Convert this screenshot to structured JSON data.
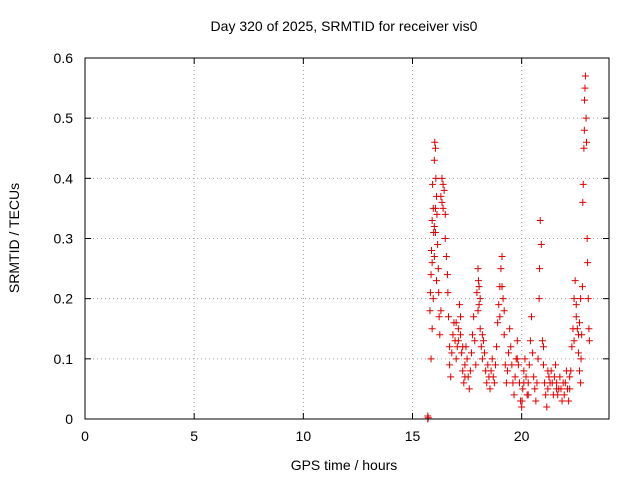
{
  "chart_data": {
    "type": "scatter",
    "title": "Day 320 of 2025, SRMTID for receiver vis0",
    "xlabel": "GPS time / hours",
    "ylabel": "SRMTID / TECUs",
    "xlim": [
      0,
      24
    ],
    "ylim": [
      0,
      0.6
    ],
    "xticks": [
      0,
      5,
      10,
      15,
      20
    ],
    "xtick_labels": [
      "0",
      "5",
      "10",
      "15",
      "20"
    ],
    "yticks": [
      0,
      0.1,
      0.2,
      0.3,
      0.4,
      0.5,
      0.6
    ],
    "ytick_labels": [
      "0",
      "0.1",
      "0.2",
      "0.3",
      "0.4",
      "0.5",
      "0.6"
    ],
    "grid": true,
    "marker": "plus",
    "color": "#e00000",
    "series": [
      {
        "name": "SRMTID",
        "points": [
          [
            15.7,
            0.0
          ],
          [
            15.7,
            0.005
          ],
          [
            15.72,
            0.002
          ],
          [
            15.8,
            0.18
          ],
          [
            15.82,
            0.21
          ],
          [
            15.85,
            0.24
          ],
          [
            15.87,
            0.28
          ],
          [
            15.9,
            0.33
          ],
          [
            15.92,
            0.39
          ],
          [
            15.95,
            0.35
          ],
          [
            15.97,
            0.31
          ],
          [
            16.0,
            0.43
          ],
          [
            16.02,
            0.46
          ],
          [
            16.05,
            0.45
          ],
          [
            16.07,
            0.4
          ],
          [
            16.1,
            0.37
          ],
          [
            16.12,
            0.34
          ],
          [
            16.15,
            0.29
          ],
          [
            16.18,
            0.25
          ],
          [
            16.2,
            0.21
          ],
          [
            16.22,
            0.17
          ],
          [
            15.85,
            0.1
          ],
          [
            15.9,
            0.15
          ],
          [
            15.95,
            0.2
          ],
          [
            16.0,
            0.27
          ],
          [
            16.05,
            0.31
          ],
          [
            16.1,
            0.23
          ],
          [
            16.25,
            0.14
          ],
          [
            16.3,
            0.18
          ],
          [
            16.35,
            0.36
          ],
          [
            16.4,
            0.39
          ],
          [
            16.45,
            0.38
          ],
          [
            16.5,
            0.34
          ],
          [
            16.5,
            0.3
          ],
          [
            16.55,
            0.27
          ],
          [
            16.6,
            0.24
          ],
          [
            16.62,
            0.21
          ],
          [
            16.65,
            0.17
          ],
          [
            16.7,
            0.12
          ],
          [
            16.7,
            0.09
          ],
          [
            16.75,
            0.07
          ],
          [
            16.8,
            0.11
          ],
          [
            16.85,
            0.14
          ],
          [
            16.9,
            0.16
          ],
          [
            16.95,
            0.13
          ],
          [
            17.0,
            0.1
          ],
          [
            17.05,
            0.12
          ],
          [
            17.1,
            0.15
          ],
          [
            17.15,
            0.19
          ],
          [
            17.2,
            0.14
          ],
          [
            17.25,
            0.11
          ],
          [
            17.3,
            0.08
          ],
          [
            17.35,
            0.06
          ],
          [
            17.4,
            0.09
          ],
          [
            17.45,
            0.12
          ],
          [
            17.5,
            0.1
          ],
          [
            17.55,
            0.07
          ],
          [
            17.6,
            0.05
          ],
          [
            17.65,
            0.08
          ],
          [
            17.7,
            0.11
          ],
          [
            17.75,
            0.14
          ],
          [
            17.8,
            0.17
          ],
          [
            17.85,
            0.13
          ],
          [
            17.9,
            0.09
          ],
          [
            17.95,
            0.21
          ],
          [
            18.0,
            0.25
          ],
          [
            18.02,
            0.23
          ],
          [
            18.05,
            0.19
          ],
          [
            18.1,
            0.15
          ],
          [
            18.15,
            0.12
          ],
          [
            18.2,
            0.1
          ],
          [
            18.25,
            0.13
          ],
          [
            18.3,
            0.11
          ],
          [
            18.35,
            0.08
          ],
          [
            18.4,
            0.06
          ],
          [
            18.45,
            0.09
          ],
          [
            18.5,
            0.07
          ],
          [
            18.55,
            0.05
          ],
          [
            18.6,
            0.08
          ],
          [
            18.65,
            0.1
          ],
          [
            18.7,
            0.07
          ],
          [
            18.75,
            0.06
          ],
          [
            18.8,
            0.09
          ],
          [
            18.85,
            0.12
          ],
          [
            18.9,
            0.16
          ],
          [
            18.95,
            0.19
          ],
          [
            19.0,
            0.22
          ],
          [
            19.05,
            0.25
          ],
          [
            19.1,
            0.27
          ],
          [
            19.15,
            0.2
          ],
          [
            19.2,
            0.14
          ],
          [
            19.25,
            0.09
          ],
          [
            19.3,
            0.06
          ],
          [
            19.35,
            0.08
          ],
          [
            19.4,
            0.11
          ],
          [
            19.45,
            0.15
          ],
          [
            19.5,
            0.12
          ],
          [
            19.55,
            0.09
          ],
          [
            19.6,
            0.06
          ],
          [
            19.65,
            0.04
          ],
          [
            19.7,
            0.07
          ],
          [
            19.75,
            0.1
          ],
          [
            19.8,
            0.13
          ],
          [
            19.85,
            0.09
          ],
          [
            19.9,
            0.06
          ],
          [
            19.95,
            0.03
          ],
          [
            20.0,
            0.02
          ],
          [
            20.02,
            0.03
          ],
          [
            20.05,
            0.05
          ],
          [
            20.1,
            0.08
          ],
          [
            20.15,
            0.1
          ],
          [
            20.2,
            0.07
          ],
          [
            20.25,
            0.04
          ],
          [
            20.3,
            0.06
          ],
          [
            20.35,
            0.09
          ],
          [
            20.4,
            0.13
          ],
          [
            20.45,
            0.17
          ],
          [
            20.5,
            0.11
          ],
          [
            20.55,
            0.07
          ],
          [
            20.6,
            0.05
          ],
          [
            20.65,
            0.03
          ],
          [
            20.7,
            0.06
          ],
          [
            20.75,
            0.1
          ],
          [
            20.8,
            0.2
          ],
          [
            20.82,
            0.25
          ],
          [
            20.85,
            0.33
          ],
          [
            20.9,
            0.29
          ],
          [
            20.95,
            0.13
          ],
          [
            21.0,
            0.09
          ],
          [
            21.05,
            0.06
          ],
          [
            21.1,
            0.04
          ],
          [
            21.15,
            0.02
          ],
          [
            21.2,
            0.05
          ],
          [
            21.25,
            0.07
          ],
          [
            21.3,
            0.06
          ],
          [
            21.35,
            0.08
          ],
          [
            21.4,
            0.06
          ],
          [
            21.45,
            0.04
          ],
          [
            21.5,
            0.07
          ],
          [
            21.55,
            0.09
          ],
          [
            21.6,
            0.06
          ],
          [
            21.65,
            0.04
          ],
          [
            21.7,
            0.05
          ],
          [
            21.75,
            0.07
          ],
          [
            21.8,
            0.05
          ],
          [
            21.85,
            0.03
          ],
          [
            21.9,
            0.06
          ],
          [
            21.95,
            0.04
          ],
          [
            22.0,
            0.06
          ],
          [
            22.05,
            0.08
          ],
          [
            22.1,
            0.05
          ],
          [
            22.15,
            0.03
          ],
          [
            22.2,
            0.05
          ],
          [
            22.25,
            0.08
          ],
          [
            22.3,
            0.12
          ],
          [
            22.35,
            0.15
          ],
          [
            22.4,
            0.2
          ],
          [
            22.45,
            0.23
          ],
          [
            22.5,
            0.19
          ],
          [
            22.55,
            0.15
          ],
          [
            22.6,
            0.11
          ],
          [
            22.65,
            0.08
          ],
          [
            22.7,
            0.06
          ],
          [
            22.72,
            0.1
          ],
          [
            22.75,
            0.14
          ],
          [
            22.78,
            0.22
          ],
          [
            22.8,
            0.36
          ],
          [
            22.82,
            0.39
          ],
          [
            22.85,
            0.45
          ],
          [
            22.87,
            0.48
          ],
          [
            22.88,
            0.53
          ],
          [
            22.9,
            0.55
          ],
          [
            22.92,
            0.57
          ],
          [
            22.95,
            0.5
          ],
          [
            22.97,
            0.46
          ],
          [
            23.0,
            0.3
          ],
          [
            23.02,
            0.26
          ],
          [
            23.05,
            0.2
          ],
          [
            23.08,
            0.15
          ],
          [
            23.1,
            0.13
          ],
          [
            22.6,
            0.14
          ],
          [
            22.65,
            0.16
          ],
          [
            22.7,
            0.2
          ],
          [
            16.3,
            0.37
          ],
          [
            16.35,
            0.4
          ],
          [
            16.4,
            0.35
          ],
          [
            15.9,
            0.26
          ],
          [
            16.0,
            0.32
          ],
          [
            16.05,
            0.35
          ],
          [
            17.0,
            0.16
          ],
          [
            17.1,
            0.13
          ],
          [
            17.2,
            0.17
          ],
          [
            17.3,
            0.12
          ],
          [
            17.4,
            0.07
          ],
          [
            18.0,
            0.18
          ],
          [
            18.05,
            0.22
          ],
          [
            18.1,
            0.2
          ],
          [
            18.2,
            0.14
          ],
          [
            19.0,
            0.17
          ],
          [
            19.1,
            0.22
          ],
          [
            19.2,
            0.18
          ],
          [
            19.8,
            0.1
          ],
          [
            20.1,
            0.06
          ],
          [
            20.3,
            0.04
          ],
          [
            21.0,
            0.12
          ],
          [
            21.2,
            0.08
          ],
          [
            21.6,
            0.05
          ],
          [
            22.2,
            0.07
          ],
          [
            22.4,
            0.13
          ],
          [
            22.5,
            0.17
          ]
        ]
      }
    ]
  }
}
